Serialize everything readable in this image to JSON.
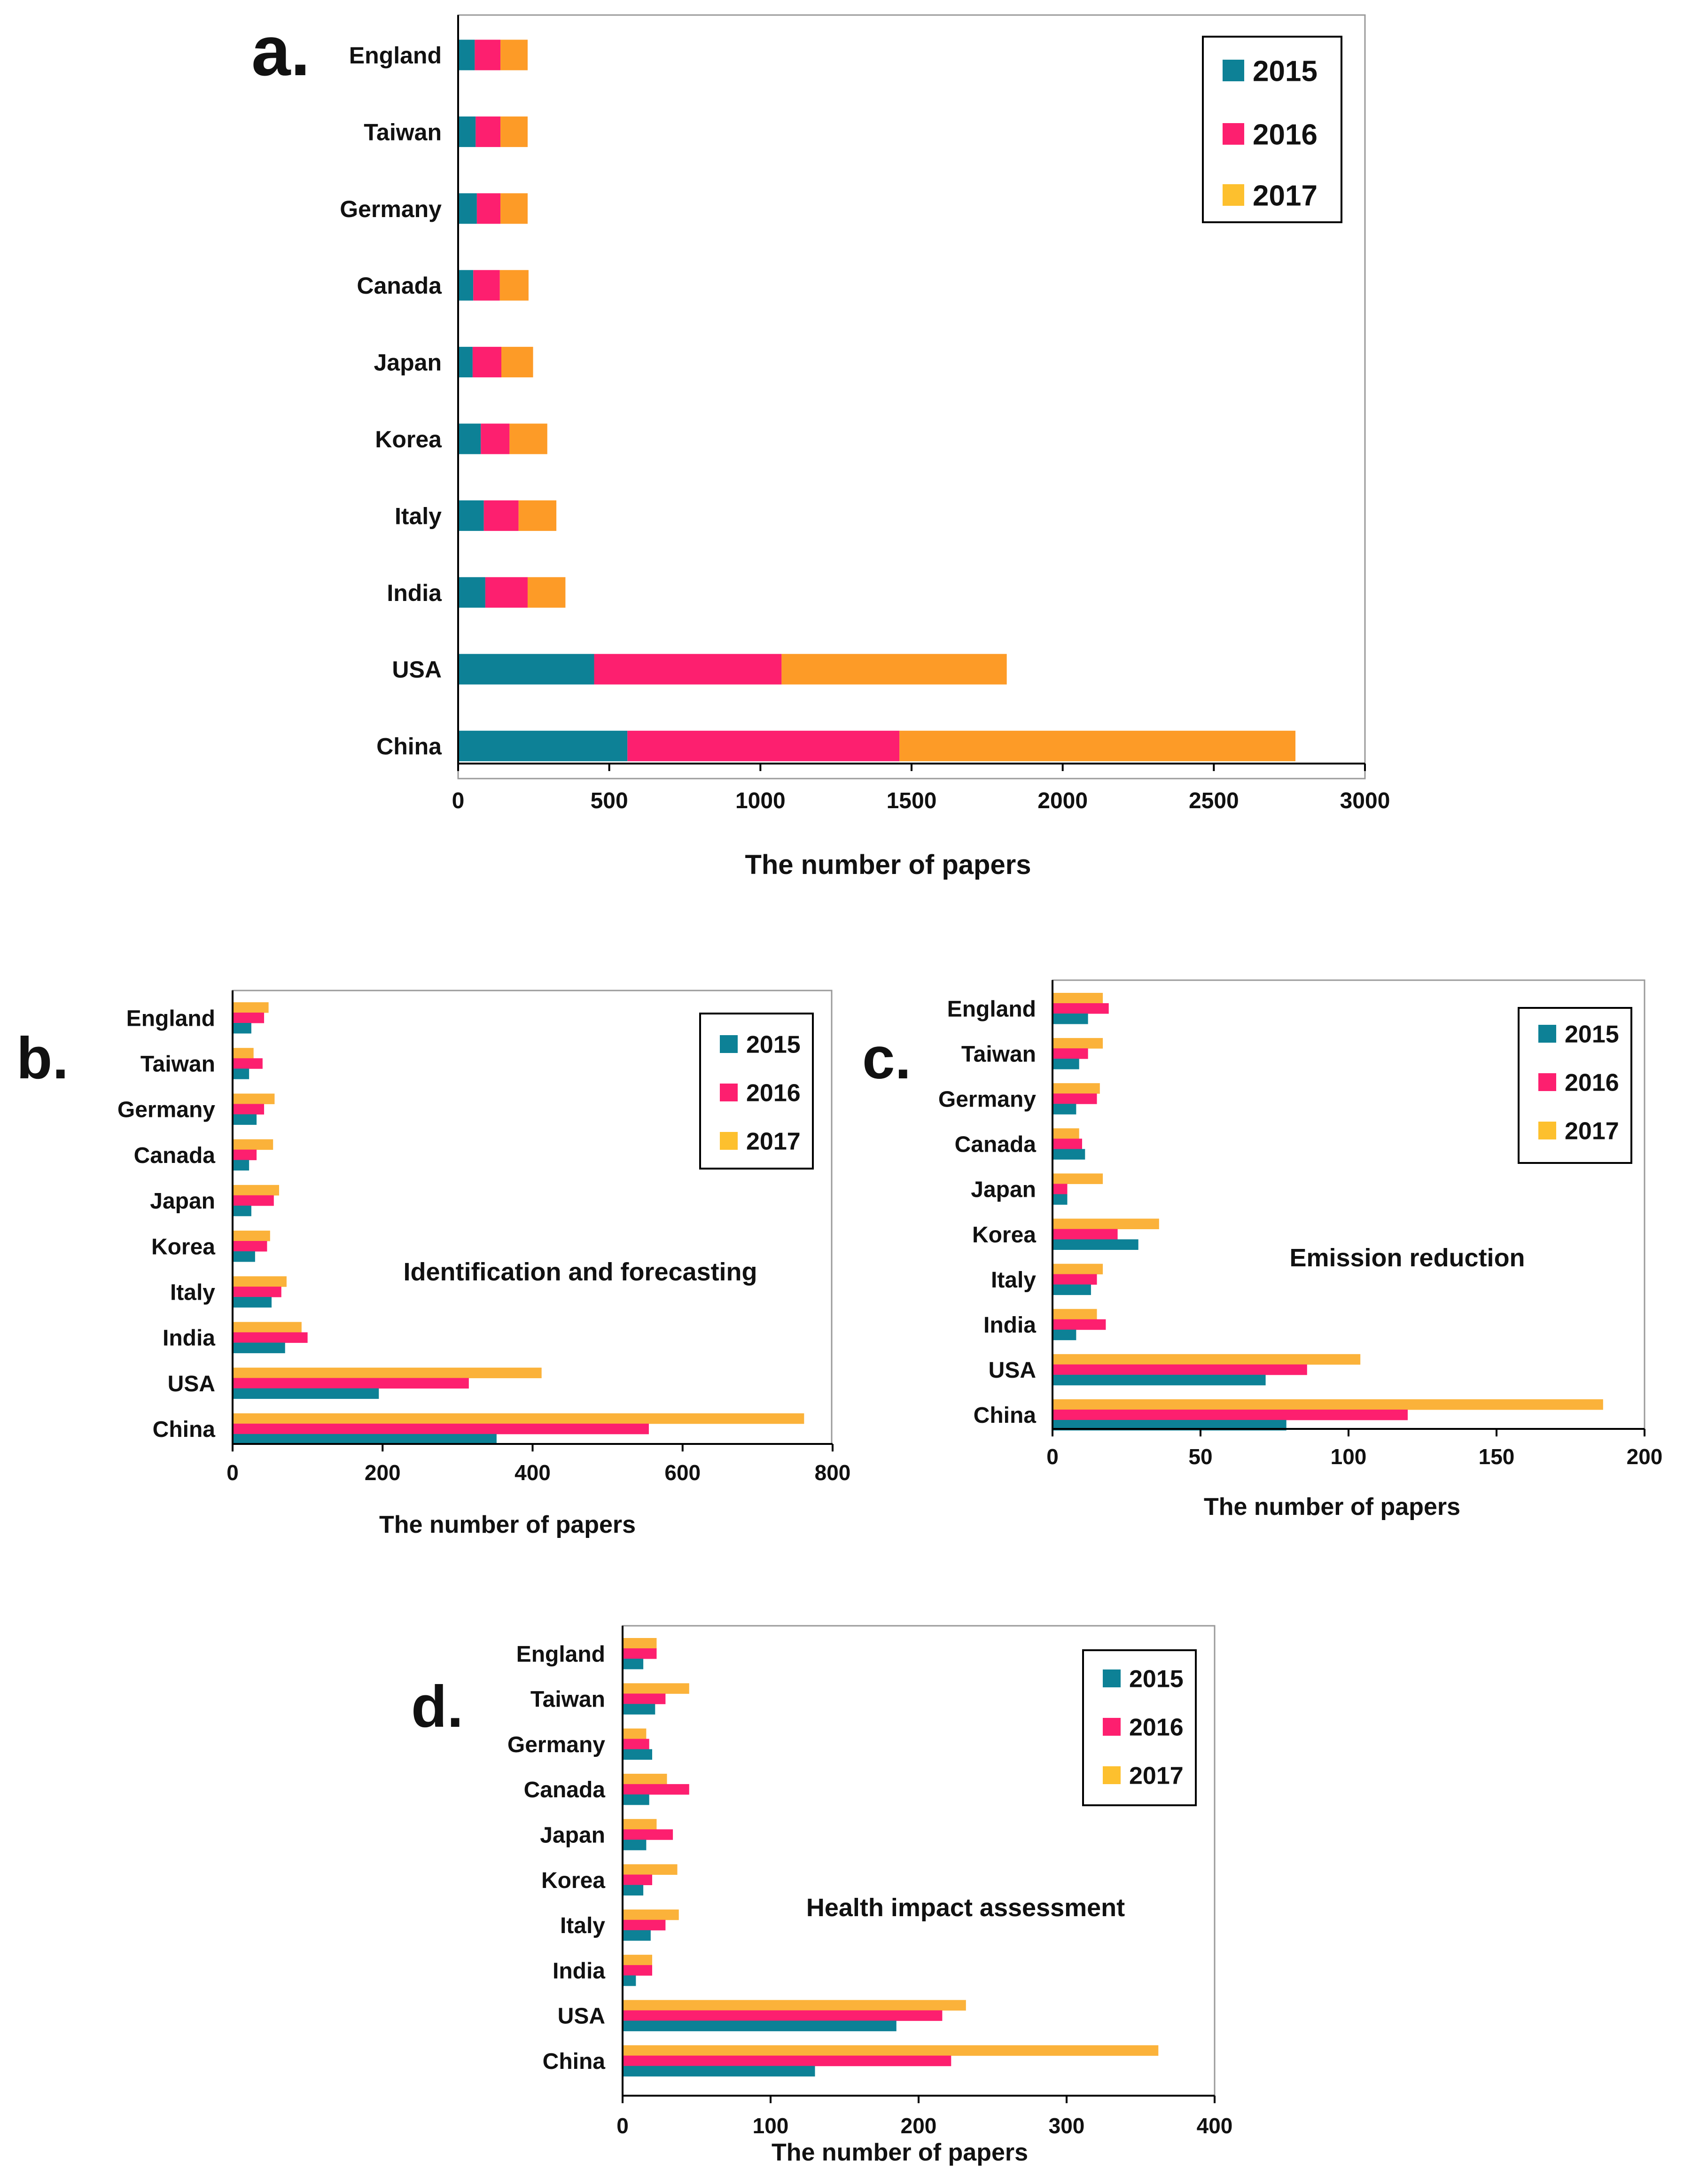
{
  "colors": {
    "y2015": "#0d8196",
    "y2016": "#fd1f6f",
    "y2017_stacked": "#fd9b27",
    "y2017_grouped": "#fbb23a",
    "legend2017": "#fdc02e"
  },
  "chart_data": [
    {
      "id": "a",
      "panel_label": "a.",
      "type": "bar",
      "orientation": "horizontal",
      "stacked": true,
      "title": "",
      "xlabel": "The number of papers",
      "xlim": [
        0,
        3000
      ],
      "xticks": [
        0,
        500,
        1000,
        1500,
        2000,
        2500,
        3000
      ],
      "categories": [
        "England",
        "Taiwan",
        "Germany",
        "Canada",
        "Japan",
        "Korea",
        "Italy",
        "India",
        "USA",
        "China"
      ],
      "series": [
        {
          "name": "2015",
          "values": [
            55,
            58,
            62,
            50,
            48,
            75,
            85,
            90,
            450,
            560
          ]
        },
        {
          "name": "2016",
          "values": [
            85,
            82,
            78,
            88,
            95,
            95,
            115,
            140,
            620,
            900
          ]
        },
        {
          "name": "2017",
          "values": [
            90,
            90,
            90,
            95,
            105,
            125,
            125,
            125,
            745,
            1310
          ]
        }
      ],
      "legend": [
        "2015",
        "2016",
        "2017"
      ]
    },
    {
      "id": "b",
      "panel_label": "b.",
      "type": "bar",
      "orientation": "horizontal",
      "stacked": false,
      "title": "Identification and forecasting",
      "xlabel": "The number of papers",
      "xlim": [
        0,
        800
      ],
      "xticks": [
        0,
        200,
        400,
        600,
        800
      ],
      "categories": [
        "England",
        "Taiwan",
        "Germany",
        "Canada",
        "Japan",
        "Korea",
        "Italy",
        "India",
        "USA",
        "China"
      ],
      "series": [
        {
          "name": "2015",
          "values": [
            25,
            22,
            32,
            22,
            25,
            30,
            52,
            70,
            195,
            352
          ]
        },
        {
          "name": "2016",
          "values": [
            42,
            40,
            42,
            32,
            55,
            46,
            65,
            100,
            315,
            555
          ]
        },
        {
          "name": "2017",
          "values": [
            48,
            28,
            56,
            54,
            62,
            50,
            72,
            92,
            412,
            762
          ]
        }
      ],
      "legend": [
        "2015",
        "2016",
        "2017"
      ]
    },
    {
      "id": "c",
      "panel_label": "c.",
      "type": "bar",
      "orientation": "horizontal",
      "stacked": false,
      "title": "Emission reduction",
      "xlabel": "The number of papers",
      "xlim": [
        0,
        200
      ],
      "xticks": [
        0,
        50,
        100,
        150,
        200
      ],
      "categories": [
        "England",
        "Taiwan",
        "Germany",
        "Canada",
        "Japan",
        "Korea",
        "Italy",
        "India",
        "USA",
        "China"
      ],
      "series": [
        {
          "name": "2015",
          "values": [
            12,
            9,
            8,
            11,
            5,
            29,
            13,
            8,
            72,
            79
          ]
        },
        {
          "name": "2016",
          "values": [
            19,
            12,
            15,
            10,
            5,
            22,
            15,
            18,
            86,
            120
          ]
        },
        {
          "name": "2017",
          "values": [
            17,
            17,
            16,
            9,
            17,
            36,
            17,
            15,
            104,
            186
          ]
        }
      ],
      "legend": [
        "2015",
        "2016",
        "2017"
      ]
    },
    {
      "id": "d",
      "panel_label": "d.",
      "type": "bar",
      "orientation": "horizontal",
      "stacked": false,
      "title": "Health impact assessment",
      "xlabel": "The number of papers",
      "xlim": [
        0,
        400
      ],
      "xticks": [
        0,
        100,
        200,
        300,
        400
      ],
      "categories": [
        "England",
        "Taiwan",
        "Germany",
        "Canada",
        "Japan",
        "Korea",
        "Italy",
        "India",
        "USA",
        "China"
      ],
      "series": [
        {
          "name": "2015",
          "values": [
            14,
            22,
            20,
            18,
            16,
            14,
            19,
            9,
            185,
            130
          ]
        },
        {
          "name": "2016",
          "values": [
            23,
            29,
            18,
            45,
            34,
            20,
            29,
            20,
            216,
            222
          ]
        },
        {
          "name": "2017",
          "values": [
            23,
            45,
            16,
            30,
            23,
            37,
            38,
            20,
            232,
            362
          ]
        }
      ],
      "legend": [
        "2015",
        "2016",
        "2017"
      ]
    }
  ]
}
